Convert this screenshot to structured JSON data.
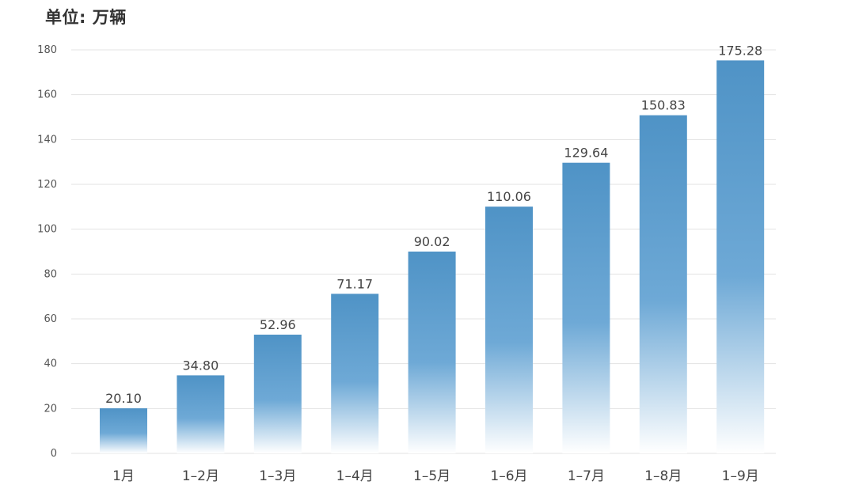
{
  "unit_label": "单位: 万辆",
  "chart_data": {
    "type": "bar",
    "title": "",
    "xlabel": "",
    "ylabel": "",
    "unit": "单位: 万辆",
    "categories": [
      "1月",
      "1–2月",
      "1–3月",
      "1–4月",
      "1–5月",
      "1–6月",
      "1–7月",
      "1–8月",
      "1–9月"
    ],
    "values": [
      20.1,
      34.8,
      52.96,
      71.17,
      90.02,
      110.06,
      129.64,
      150.83,
      175.28
    ],
    "value_labels": [
      "20.10",
      "34.80",
      "52.96",
      "71.17",
      "90.02",
      "110.06",
      "129.64",
      "150.83",
      "175.28"
    ],
    "ylim": [
      0,
      180
    ],
    "yticks": [
      0,
      20,
      40,
      60,
      80,
      100,
      120,
      140,
      160,
      180
    ],
    "grid": true,
    "legend": "none",
    "colors": {
      "bar_top": "#4f93c6",
      "bar_mid": "#6ea9d6",
      "bar_bottom": "#ffffff",
      "grid": "#e3e3e3"
    }
  }
}
